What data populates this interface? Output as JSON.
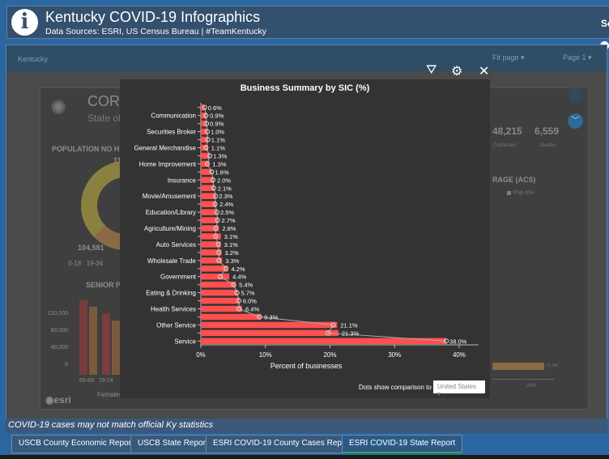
{
  "header": {
    "title": "Kentucky COVID-19 Infographics",
    "subtitle": "Data Sources: ESRI, US Census Bureau | #TeamKentucky",
    "right_cut": "Se",
    "icon": "info-icon"
  },
  "report_bar": {
    "location": "Kentucky",
    "fit_label": "Fit page",
    "page_label": "Page 1"
  },
  "background": {
    "heading": "CORO",
    "state": "State of",
    "pop_no_health": "POPULATION NO HEAL",
    "donut_value_top": "11",
    "donut_value": "104,581",
    "legend": [
      "0-18",
      "19-34"
    ],
    "senior_heading": "SENIOR PO",
    "senior_yticks": [
      "120,000",
      "80,000",
      "40,000",
      "0"
    ],
    "senior_xticks": [
      "65-69",
      "70-74"
    ],
    "senior_legend": "Females",
    "confirmed_value": "48,215",
    "confirmed_label": "Confirmed",
    "deaths_value": "6,559",
    "deaths_label": "Deaths",
    "coverage_heading": "RAGE (ACS)",
    "coverage_legend": "Pop 65+",
    "coverage_bar_label": "21.9%",
    "coverage_tick": "20%",
    "logo": "esri"
  },
  "toolbar": {
    "filter": "filter-icon",
    "settings": "gear-icon",
    "close": "close-icon"
  },
  "chart_data": {
    "type": "bar",
    "orientation": "horizontal",
    "title": "Business Summary by SIC (%)",
    "xlabel": "Percent of businesses",
    "xlim": [
      0,
      43
    ],
    "xticks": [
      "0%",
      "10%",
      "20%",
      "30%",
      "40%"
    ],
    "categories": [
      "",
      "Communication",
      "",
      "Securities Broker",
      "",
      "General Merchandise",
      "",
      "Home Improvement",
      "",
      "Insurance",
      "",
      "Movie/Amusement",
      "",
      "Education/Library",
      "",
      "Agriculture/Mining",
      "",
      "Auto Services",
      "",
      "Wholesale Trade",
      "",
      "Government",
      "",
      "Eating & Drinking",
      "",
      "Health Services",
      "",
      "Other Service",
      "",
      "Service"
    ],
    "values": [
      0.6,
      0.9,
      0.9,
      1.0,
      1.1,
      1.1,
      1.3,
      1.3,
      1.6,
      2.0,
      2.1,
      2.3,
      2.4,
      2.5,
      2.7,
      2.8,
      3.1,
      3.1,
      3.2,
      3.3,
      4.2,
      4.4,
      5.4,
      5.7,
      6.0,
      6.4,
      9.3,
      21.1,
      21.3,
      38.0
    ],
    "labels": [
      "0.6%",
      "0.9%",
      "0.9%",
      "1.0%",
      "1.1%",
      "1.1%",
      "1.3%",
      "1.3%",
      "1.6%",
      "2.0%",
      "2.1%",
      "2.3%",
      "2.4%",
      "2.5%",
      "2.7%",
      "2.8%",
      "3.1%",
      "3.1%",
      "3.2%",
      "3.3%",
      "4.2%",
      "4.4%",
      "5.4%",
      "5.7%",
      "6.0%",
      "6.4%",
      "9.3%",
      "21.1%",
      "21.3%",
      "38.0%"
    ],
    "comparison_values": [
      0.6,
      0.8,
      0.9,
      1.0,
      1.1,
      0.8,
      1.4,
      1.0,
      1.7,
      1.9,
      2.0,
      2.3,
      2.2,
      2.5,
      2.6,
      2.3,
      2.3,
      2.7,
      2.8,
      2.8,
      3.9,
      3.0,
      5.1,
      5.6,
      5.9,
      5.9,
      9.1,
      20.5,
      19.7,
      38.0
    ],
    "bar_color": "#ff4f4f",
    "grid": false
  },
  "comparison": {
    "label": "Dots show comparison to",
    "selected": "United States"
  },
  "footer_note": "COVID-19 cases may not match official Ky statistics",
  "tabs": [
    {
      "label": "USCB County Economic Reports"
    },
    {
      "label": "USCB State Report"
    },
    {
      "label": "ESRI COVID-19 County Cases Reports"
    },
    {
      "label": "ESRI COVID-19 State Report",
      "active": true
    }
  ]
}
